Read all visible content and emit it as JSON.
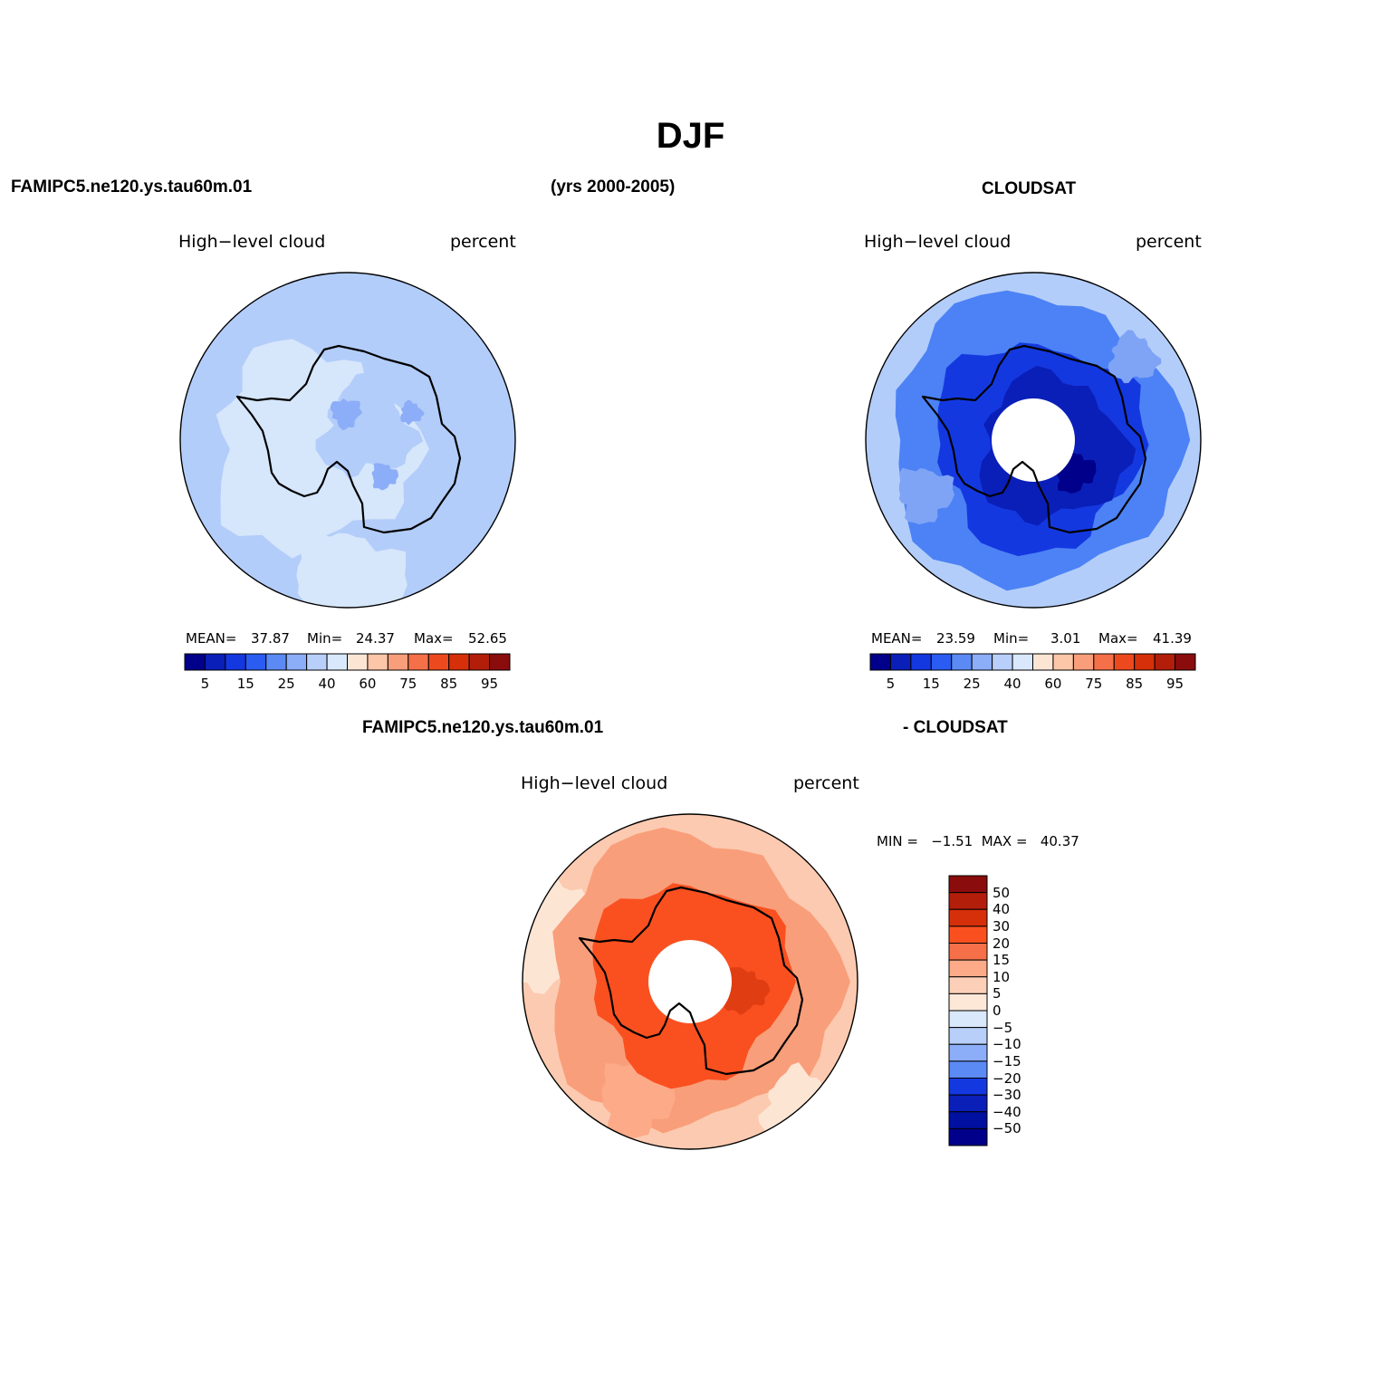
{
  "title": "DJF",
  "header": {
    "model_name": "FAMIPC5.ne120.ys.tau60m.01",
    "years": "(yrs 2000-2005)",
    "obs_name": "CLOUDSAT"
  },
  "panels": [
    {
      "id": "model",
      "left_label": "High−level cloud",
      "right_label": "percent",
      "stats": {
        "mean_label": "MEAN=",
        "mean": "37.87",
        "min_label": "Min=",
        "min": "24.37",
        "max_label": "Max=",
        "max": "52.65"
      },
      "background_color": "#b3cdfa"
    },
    {
      "id": "obs",
      "left_label": "High−level cloud",
      "right_label": "percent",
      "stats": {
        "mean_label": "MEAN=",
        "mean": "23.59",
        "min_label": "Min=",
        "min": "3.01",
        "max_label": "Max=",
        "max": "41.39"
      },
      "background_color": "#4c82f5"
    },
    {
      "id": "diff",
      "title_left": "FAMIPC5.ne120.ys.tau60m.01",
      "title_right": "- CLOUDSAT",
      "left_label": "High−level cloud",
      "right_label": "percent",
      "stats_text": "MIN =   −1.51  MAX =   40.37",
      "background_color": "#fccab0"
    }
  ],
  "colorbar_main": {
    "colors": [
      "#00008a",
      "#0a1fb8",
      "#1438e0",
      "#2a5cf2",
      "#5b8af5",
      "#8cadf7",
      "#b8cffa",
      "#d9e8fb",
      "#fde5d4",
      "#fcc6a8",
      "#f99e7a",
      "#f57048",
      "#ec4a1e",
      "#d6300a",
      "#b31e0a",
      "#8a0c0c"
    ],
    "tick_labels": [
      "5",
      "15",
      "25",
      "40",
      "60",
      "75",
      "85",
      "95"
    ]
  },
  "colorbar_diff": {
    "colors": [
      "#8a0c0c",
      "#b31e0a",
      "#d6300a",
      "#fa5020",
      "#f57048",
      "#fcaa88",
      "#fcd0b8",
      "#fde8d8",
      "#d9e8fb",
      "#b8cffa",
      "#8cadf7",
      "#5b8af5",
      "#1438e0",
      "#0a1fb8",
      "#0010a0",
      "#00008a"
    ],
    "tick_labels": [
      "50",
      "40",
      "30",
      "20",
      "15",
      "10",
      "5",
      "0",
      "−5",
      "−10",
      "−15",
      "−20",
      "−30",
      "−40",
      "−50"
    ]
  },
  "colors": {
    "model_light": "#d6e6fb",
    "model_mid": "#8cadf7",
    "obs_light": "#b3cdfa",
    "obs_mid": "#7fa4f6",
    "obs_dark": "#1438e0",
    "obs_darker": "#0a1fb8",
    "diff_light": "#fde5d4",
    "diff_mid": "#f99e7a",
    "diff_strong": "#fa5020",
    "diff_darker": "#e03d12",
    "coast": "#000000"
  }
}
